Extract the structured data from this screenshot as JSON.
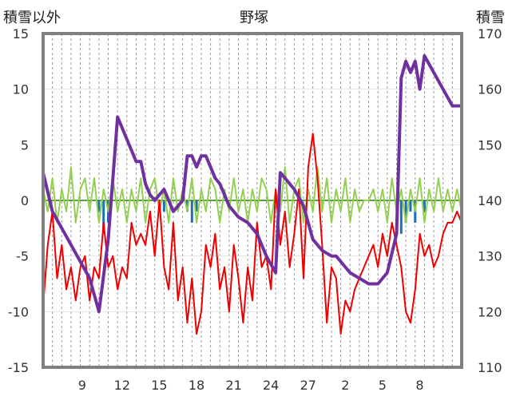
{
  "chart_data": {
    "type": "line",
    "title": "野塚",
    "left_axis_title": "積雪以外",
    "right_axis_title": "積雪",
    "left_ylim": [
      -15,
      15
    ],
    "left_yticks": [
      "15",
      "10",
      "5",
      "0",
      "-5",
      "-10",
      "-15"
    ],
    "right_ylim": [
      110,
      170
    ],
    "right_yticks": [
      "170",
      "160",
      "150",
      "140",
      "130",
      "120",
      "110"
    ],
    "x_ticks": [
      "9",
      "12",
      "15",
      "18",
      "21",
      "24",
      "27",
      "2",
      "5",
      "8"
    ],
    "grid": "vertical-dashed",
    "colors": {
      "temperature": "#ee0000",
      "snow_depth": "#7030a0",
      "change": "#92d050",
      "precip": "#1f6fb5",
      "zero_line": "#5b9e3a",
      "frame": "#808080"
    },
    "series": [
      {
        "axis": "right",
        "color": "#7030a0",
        "x": [
          0,
          1,
          2,
          3,
          4,
          5,
          6,
          7,
          8,
          9,
          10,
          10.5,
          11,
          11.5,
          12,
          13,
          14,
          15,
          15.5,
          16,
          16.5,
          17,
          17.5,
          18,
          18.5,
          19,
          20,
          21,
          22,
          23,
          23.5,
          24,
          25,
          25.5,
          26,
          27,
          28,
          29,
          30,
          31,
          31.5,
          32,
          33,
          34,
          35,
          36,
          37,
          38,
          38.5,
          39,
          39.5,
          40,
          40.5,
          41,
          42,
          43,
          44,
          45
        ],
        "values": [
          145,
          138,
          135,
          132,
          129,
          126,
          120,
          133,
          155,
          151,
          147,
          147,
          143,
          141,
          140,
          142,
          138,
          140,
          148,
          148,
          146,
          148,
          148,
          146,
          144,
          143,
          139,
          137,
          136,
          134,
          132,
          130,
          127,
          145,
          144,
          142,
          139,
          133,
          131,
          130,
          130,
          129,
          127,
          126,
          125,
          125,
          127,
          134,
          162,
          165,
          163,
          165,
          160,
          166,
          163,
          160,
          157,
          157
        ]
      },
      {
        "axis": "left",
        "color": "#ee0000",
        "x": [
          0,
          0.5,
          1,
          1.5,
          2,
          2.5,
          3,
          3.5,
          4,
          4.5,
          5,
          5.5,
          6,
          6.5,
          7,
          7.5,
          8,
          8.5,
          9,
          9.5,
          10,
          10.5,
          11,
          11.5,
          12,
          12.5,
          13,
          13.5,
          14,
          14.5,
          15,
          15.5,
          16,
          16.5,
          17,
          17.5,
          18,
          18.5,
          19,
          19.5,
          20,
          20.5,
          21,
          21.5,
          22,
          22.5,
          23,
          23.5,
          24,
          24.5,
          25,
          25.5,
          26,
          26.5,
          27,
          27.5,
          28,
          28.5,
          29,
          29.5,
          30,
          30.5,
          31,
          31.5,
          32,
          32.5,
          33,
          33.5,
          34,
          34.5,
          35,
          35.5,
          36,
          36.5,
          37,
          37.5,
          38,
          38.5,
          39,
          39.5,
          40,
          40.5,
          41,
          41.5,
          42,
          42.5,
          43,
          43.5,
          44,
          44.5,
          45
        ],
        "values": [
          -9.5,
          -4,
          -1,
          -7,
          -4,
          -8,
          -6,
          -9,
          -6,
          -5,
          -9,
          -6,
          -7,
          -2,
          -6,
          -5,
          -8,
          -6,
          -7,
          -2,
          -4,
          -3,
          -4,
          -1,
          -5,
          0,
          -6,
          -8,
          -2,
          -9,
          -6,
          -11,
          -7,
          -12,
          -10,
          -4,
          -6,
          -3,
          -8,
          -6,
          -10,
          -4,
          -7,
          -11,
          -6,
          -9,
          -2,
          -6,
          -5,
          -8,
          1,
          -4,
          -1,
          -6,
          -3,
          1,
          -7,
          3,
          6,
          2,
          -4,
          -11,
          -6,
          -7,
          -12,
          -9,
          -10,
          -8,
          -7,
          -6,
          -5,
          -4,
          -6,
          -3,
          -5,
          -2,
          -4,
          -6,
          -10,
          -11,
          -8,
          -3,
          -5,
          -4,
          -6,
          -5,
          -3,
          -2,
          -2,
          -1,
          -2
        ]
      },
      {
        "axis": "left",
        "color": "#92d050",
        "x": [
          0,
          0.5,
          1,
          1.5,
          2,
          2.5,
          3,
          3.5,
          4,
          4.5,
          5,
          5.5,
          6,
          6.5,
          7,
          7.5,
          8,
          8.5,
          9,
          9.5,
          10,
          10.5,
          11,
          11.5,
          12,
          12.5,
          13,
          13.5,
          14,
          14.5,
          15,
          15.5,
          16,
          16.5,
          17,
          17.5,
          18,
          18.5,
          19,
          19.5,
          20,
          20.5,
          21,
          21.5,
          22,
          22.5,
          23,
          23.5,
          24,
          24.5,
          25,
          25.5,
          26,
          26.5,
          27,
          27.5,
          28,
          28.5,
          29,
          29.5,
          30,
          30.5,
          31,
          31.5,
          32,
          32.5,
          33,
          33.5,
          34,
          34.5,
          35,
          35.5,
          36,
          36.5,
          37,
          37.5,
          38,
          38.5,
          39,
          39.5,
          40,
          40.5,
          41,
          41.5,
          42,
          42.5,
          43,
          43.5,
          44,
          44.5,
          45
        ],
        "values": [
          1,
          -1,
          2,
          -2,
          1,
          -1,
          3,
          -2,
          1,
          2,
          -1,
          2,
          -2,
          1,
          -1,
          2,
          -1,
          1,
          -2,
          1,
          -1,
          2,
          -2,
          1,
          2,
          -1,
          1,
          -2,
          2,
          -1,
          1,
          -1,
          2,
          -2,
          1,
          -1,
          2,
          1,
          -2,
          1,
          -1,
          2,
          -1,
          1,
          -2,
          1,
          -1,
          2,
          1,
          -2,
          1,
          -1,
          3,
          -2,
          1,
          2,
          -2,
          1,
          -1,
          3,
          -1,
          2,
          -2,
          1,
          -1,
          2,
          -2,
          1,
          -1,
          0,
          0,
          1,
          -1,
          1,
          -2,
          2,
          -1,
          1,
          -2,
          1,
          -1,
          2,
          -2,
          1,
          -1,
          2,
          -1,
          1,
          -1,
          1,
          -1
        ]
      }
    ],
    "bars": {
      "axis": "left",
      "color": "#1f6fb5",
      "x": [
        6,
        6.5,
        7,
        13,
        15.5,
        16,
        16.5,
        38.5,
        39,
        39.5,
        40,
        41
      ],
      "values": [
        -1,
        -3,
        -2,
        -1,
        -1,
        -2,
        -1,
        -3,
        -2,
        -1,
        -2,
        -1
      ]
    }
  }
}
